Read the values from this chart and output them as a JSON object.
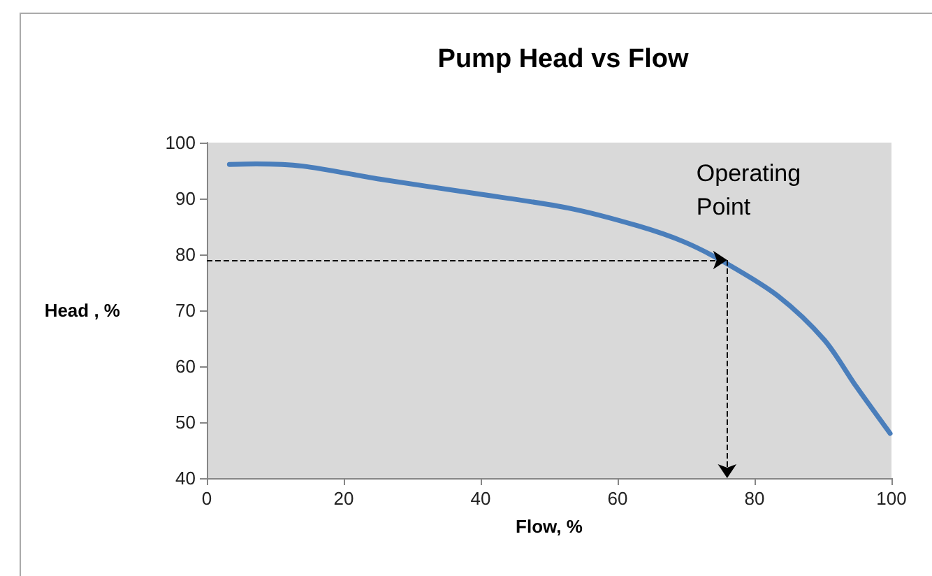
{
  "chart_data": {
    "type": "line",
    "title": "Pump Head vs Flow",
    "xlabel": "Flow, %",
    "ylabel": "Head , %",
    "x": [
      3.3,
      7.2,
      14,
      25.6,
      39.2,
      52.8,
      63,
      69.8,
      75.9,
      83.4,
      90.2,
      94.9,
      99.8
    ],
    "series": [
      {
        "color": "#4a7ebb",
        "values": [
          96.1,
          96.2,
          95.8,
          93.4,
          90.9,
          88.3,
          85.1,
          82.2,
          78.4,
          72.6,
          64.7,
          56.3,
          48
        ]
      }
    ],
    "xlim": [
      0,
      100
    ],
    "xticks": [
      0,
      20,
      40,
      60,
      80,
      100
    ],
    "ylim": [
      40,
      100
    ],
    "yticks": [
      40,
      50,
      60,
      70,
      80,
      90,
      100
    ],
    "marker": "none",
    "line_style": "solid",
    "annotations": [
      {
        "text": "Operating Point",
        "x": 76,
        "y": 79
      }
    ]
  }
}
